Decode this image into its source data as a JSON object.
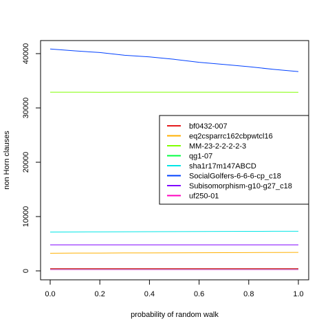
{
  "chart_data": {
    "type": "line",
    "xlabel": "probability of random walk",
    "ylabel": "non Horn clauses",
    "xlim": [
      0,
      1
    ],
    "ylim": [
      0,
      42000
    ],
    "x_ticks": [
      0.0,
      0.2,
      0.4,
      0.6,
      0.8,
      1.0
    ],
    "x_tick_labels": [
      "0.0",
      "0.2",
      "0.4",
      "0.6",
      "0.8",
      "1.0"
    ],
    "y_ticks": [
      0,
      10000,
      20000,
      30000,
      40000
    ],
    "y_tick_labels": [
      "0",
      "10000",
      "20000",
      "30000",
      "40000"
    ],
    "grid": false,
    "legend_position": "right",
    "x": [
      0.0,
      0.1,
      0.2,
      0.3,
      0.4,
      0.5,
      0.6,
      0.7,
      0.8,
      0.9,
      1.0
    ],
    "series": [
      {
        "name": "bf0432-007",
        "color": "#e41a1c",
        "values": [
          420,
          420,
          420,
          420,
          420,
          420,
          420,
          420,
          420,
          420,
          420
        ]
      },
      {
        "name": "eq2csparrc162cbpwtcl16",
        "color": "#ffb000",
        "values": [
          3250,
          3270,
          3280,
          3300,
          3310,
          3330,
          3340,
          3360,
          3370,
          3390,
          3400
        ]
      },
      {
        "name": "MM-23-2-2-2-2-3",
        "color": "#80ff00",
        "values": [
          32900,
          32900,
          32880,
          32890,
          32900,
          32890,
          32900,
          32890,
          32900,
          32890,
          32880
        ]
      },
      {
        "name": "qg1-07",
        "color": "#00ff40",
        "values": [
          300,
          300,
          300,
          300,
          300,
          300,
          300,
          300,
          300,
          300,
          300
        ]
      },
      {
        "name": "sha1r17m147ABCD",
        "color": "#00e5e5",
        "values": [
          7150,
          7170,
          7190,
          7200,
          7220,
          7230,
          7250,
          7260,
          7280,
          7290,
          7300
        ]
      },
      {
        "name": "SocialGolfers-6-6-6-cp_c18",
        "color": "#0040ff",
        "values": [
          40850,
          40500,
          40200,
          39700,
          39400,
          38950,
          38400,
          38000,
          37600,
          37100,
          36700
        ]
      },
      {
        "name": "Subisomorphism-g10-g27_c18",
        "color": "#7f00ff",
        "values": [
          4800,
          4800,
          4800,
          4800,
          4800,
          4800,
          4800,
          4800,
          4800,
          4800,
          4800
        ]
      },
      {
        "name": "uf250-01",
        "color": "#ff00bf",
        "values": [
          250,
          250,
          250,
          250,
          250,
          250,
          250,
          250,
          250,
          250,
          250
        ]
      }
    ]
  }
}
